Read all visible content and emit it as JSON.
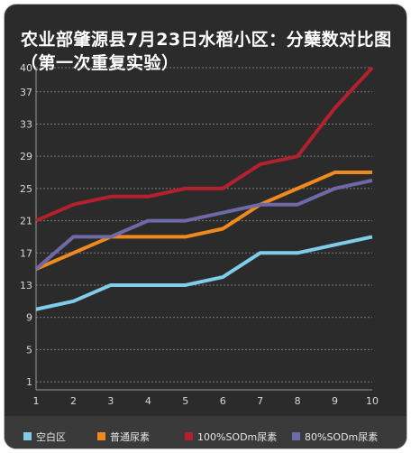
{
  "chart_data": {
    "type": "line",
    "title": "农业部肇源县7月23日水稻小区：分蘖数对比图（第一次重复实验）",
    "x": [
      1,
      2,
      3,
      4,
      5,
      6,
      7,
      8,
      9,
      10
    ],
    "yticks": [
      1,
      5,
      9,
      13,
      17,
      21,
      25,
      29,
      33,
      37,
      40
    ],
    "ylim": [
      0,
      40
    ],
    "grid": true,
    "legend_position": "bottom",
    "series": [
      {
        "name": "空白区",
        "color": "#7fcde8",
        "values": [
          10,
          11,
          13,
          13,
          13,
          14,
          17,
          17,
          18,
          19
        ]
      },
      {
        "name": "普通尿素",
        "color": "#f08a1e",
        "values": [
          15,
          17,
          19,
          19,
          19,
          20,
          23,
          25,
          27,
          27
        ]
      },
      {
        "name": "100%SODm尿素",
        "color": "#b5202e",
        "values": [
          21,
          23,
          24,
          24,
          25,
          25,
          28,
          29,
          35,
          40
        ]
      },
      {
        "name": "80%SODm尿素",
        "color": "#6e6aa8",
        "values": [
          15,
          19,
          19,
          21,
          21,
          22,
          23,
          23,
          25,
          26
        ]
      }
    ]
  }
}
